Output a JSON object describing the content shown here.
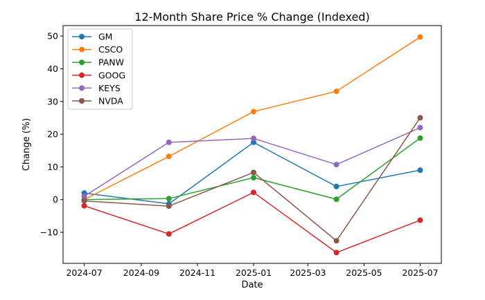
{
  "chart_data": {
    "type": "line",
    "title": "12-Month Share Price % Change (Indexed)",
    "xlabel": "Date",
    "ylabel": "Change (%)",
    "x": [
      "2024-07-01",
      "2024-10-01",
      "2025-01-01",
      "2025-04-01",
      "2025-07-01"
    ],
    "xlim": [
      "2024-06-08",
      "2025-07-24"
    ],
    "ylim": [
      -19.5,
      53.2
    ],
    "x_ticks": [
      {
        "date": "2024-07-01",
        "label": "2024-07"
      },
      {
        "date": "2024-09-01",
        "label": "2024-09"
      },
      {
        "date": "2024-11-01",
        "label": "2024-11"
      },
      {
        "date": "2025-01-01",
        "label": "2025-01"
      },
      {
        "date": "2025-03-01",
        "label": "2025-03"
      },
      {
        "date": "2025-05-01",
        "label": "2025-05"
      },
      {
        "date": "2025-07-01",
        "label": "2025-07"
      }
    ],
    "y_ticks": [
      {
        "value": -10,
        "label": "−10"
      },
      {
        "value": 0,
        "label": "0"
      },
      {
        "value": 10,
        "label": "10"
      },
      {
        "value": 20,
        "label": "20"
      },
      {
        "value": 30,
        "label": "30"
      },
      {
        "value": 40,
        "label": "40"
      },
      {
        "value": 50,
        "label": "50"
      }
    ],
    "grid": false,
    "legend_position": "top-left",
    "series": [
      {
        "name": "GM",
        "color": "#1f77b4",
        "values": [
          2.0,
          -1.3,
          17.5,
          4.0,
          9.0
        ]
      },
      {
        "name": "CSCO",
        "color": "#ff7f0e",
        "values": [
          0.0,
          13.2,
          26.9,
          33.1,
          49.7
        ]
      },
      {
        "name": "PANW",
        "color": "#2ca02c",
        "values": [
          0.0,
          0.3,
          6.7,
          0.1,
          18.8
        ]
      },
      {
        "name": "GOOG",
        "color": "#d62728",
        "values": [
          -1.9,
          -10.5,
          2.2,
          -16.2,
          -6.3
        ]
      },
      {
        "name": "KEYS",
        "color": "#9467bd",
        "values": [
          1.0,
          17.5,
          18.7,
          10.7,
          22.0
        ]
      },
      {
        "name": "NVDA",
        "color": "#8c564b",
        "values": [
          -0.4,
          -2.0,
          8.3,
          -12.6,
          25.0
        ]
      }
    ]
  }
}
